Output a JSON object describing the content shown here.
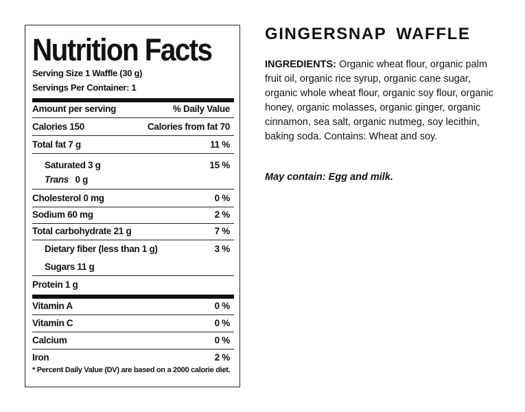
{
  "nutrition": {
    "title": "Nutrition Facts",
    "serving_size": "Serving Size 1 Waffle (30 g)",
    "servings_per_container": "Servings Per Container: 1",
    "header_left": "Amount per serving",
    "header_right": "% Daily Value",
    "calories": "Calories 150",
    "calories_from_fat": "Calories from fat  70",
    "rows": [
      {
        "label": "Total fat 7 g",
        "dv": "11 %"
      },
      {
        "label": "Saturated  3 g",
        "dv": "15 %"
      },
      {
        "label": "Cholesterol 0 mg",
        "dv": "0 %"
      },
      {
        "label": "Sodium 60 mg",
        "dv": "2 %"
      },
      {
        "label": "Total carbohydrate 21 g",
        "dv": "7 %"
      },
      {
        "label": "Dietary fiber (less than 1 g)",
        "dv": "3 %"
      },
      {
        "label": "Sugars 11 g",
        "dv": ""
      },
      {
        "label": "Protein 1 g",
        "dv": ""
      }
    ],
    "trans_label": "Trans",
    "trans_amount": "0 g",
    "vitamins": [
      {
        "label": "Vitamin A",
        "dv": "0 %"
      },
      {
        "label": "Vitamin C",
        "dv": "0 %"
      },
      {
        "label": "Calcium",
        "dv": "0 %"
      },
      {
        "label": "Iron",
        "dv": "2 %"
      }
    ],
    "footnote": "* Percent Daily Value (DV) are based on a 2000 calorie diet."
  },
  "product": {
    "title": "GINGERSNAP  WAFFLE",
    "ingredients_label": "INGREDIENTS:",
    "ingredients_text": " Organic wheat flour, organic palm fruit oil, organic rice syrup, organic cane sugar, organic whole wheat flour, organic soy flour, organic honey, organic molasses, organic ginger, organic cinnamon, sea salt, organic nutmeg, soy lecithin, baking soda. Contains: Wheat and soy.",
    "allergen": "May contain: Egg and milk."
  }
}
